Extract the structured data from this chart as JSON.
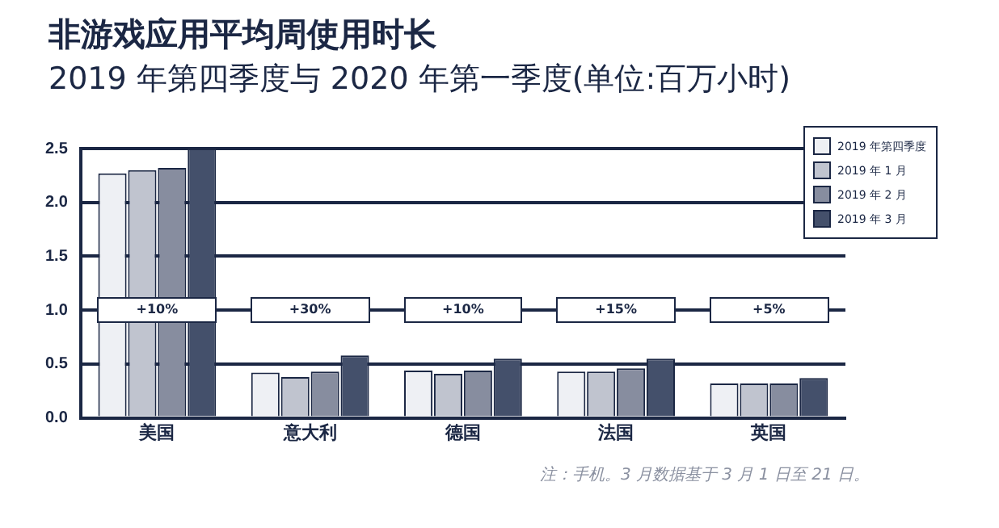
{
  "chart_data": {
    "type": "bar",
    "title": "非游戏应用平均周使用时长",
    "subtitle": "2019 年第四季度与 2020 年第一季度(单位:百万小时)",
    "categories": [
      "美国",
      "意大利",
      "德国",
      "法国",
      "英国"
    ],
    "series": [
      {
        "name": "2019 年第四季度",
        "color": "#eef0f4",
        "values": [
          2.27,
          0.42,
          0.44,
          0.43,
          0.32
        ]
      },
      {
        "name": "2019 年 1 月",
        "color": "#c0c4cf",
        "values": [
          2.3,
          0.38,
          0.41,
          0.43,
          0.32
        ]
      },
      {
        "name": "2019 年 2 月",
        "color": "#878d9f",
        "values": [
          2.32,
          0.43,
          0.44,
          0.46,
          0.32
        ]
      },
      {
        "name": "2019 年 3 月",
        "color": "#44506b",
        "values": [
          2.5,
          0.58,
          0.55,
          0.55,
          0.37
        ]
      }
    ],
    "ylim": [
      0,
      2.5
    ],
    "yticks": [
      {
        "value": 0,
        "label": "0.0"
      },
      {
        "value": 0.5,
        "label": "0.5"
      },
      {
        "value": 1,
        "label": "1.0"
      },
      {
        "value": 1.5,
        "label": "1.5"
      },
      {
        "value": 2,
        "label": "2.0"
      },
      {
        "value": 2.5,
        "label": "2.5"
      }
    ],
    "grid": "y",
    "legend": "top right",
    "annotations": [
      "+10%",
      "+30%",
      "+10%",
      "+15%",
      "+5%",
      "注：手机。3 月数据基于 3 月 1 日至 21 日。"
    ]
  }
}
